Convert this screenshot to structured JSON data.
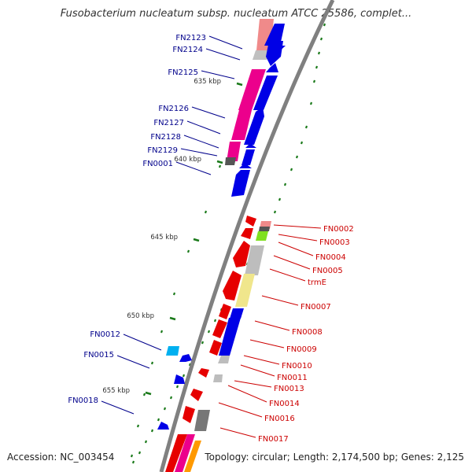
{
  "title": "Fusobacterium nucleatum subsp. nucleatum ATCC 25586, complet...",
  "accession": "Accession: NC_003454",
  "summary": "Topology: circular; Length: 2,174,500 bp; Genes: 2,125",
  "colors": {
    "backbone": "#808080",
    "forward_gene": "#0000e6",
    "reverse_gene": "#e60000",
    "forward_label": "#00008b",
    "reverse_label": "#cc0000",
    "tick": "#1a7a1a",
    "kbp_label": "#333333"
  },
  "kbp_ticks": [
    "635 kbp",
    "640 kbp",
    "645 kbp",
    "650 kbp",
    "655 kbp"
  ],
  "forward_labels": [
    "FN2123",
    "FN2124",
    "FN2125",
    "FN2126",
    "FN2127",
    "FN2128",
    "FN2129",
    "FN0001",
    "FN0012",
    "FN0015",
    "FN0018"
  ],
  "reverse_labels": [
    "FN0002",
    "FN0003",
    "FN0004",
    "FN0005",
    "trmE",
    "FN0007",
    "FN0008",
    "FN0009",
    "FN0010",
    "FN0011",
    "FN0013",
    "FN0014",
    "FN0016",
    "FN0017"
  ]
}
